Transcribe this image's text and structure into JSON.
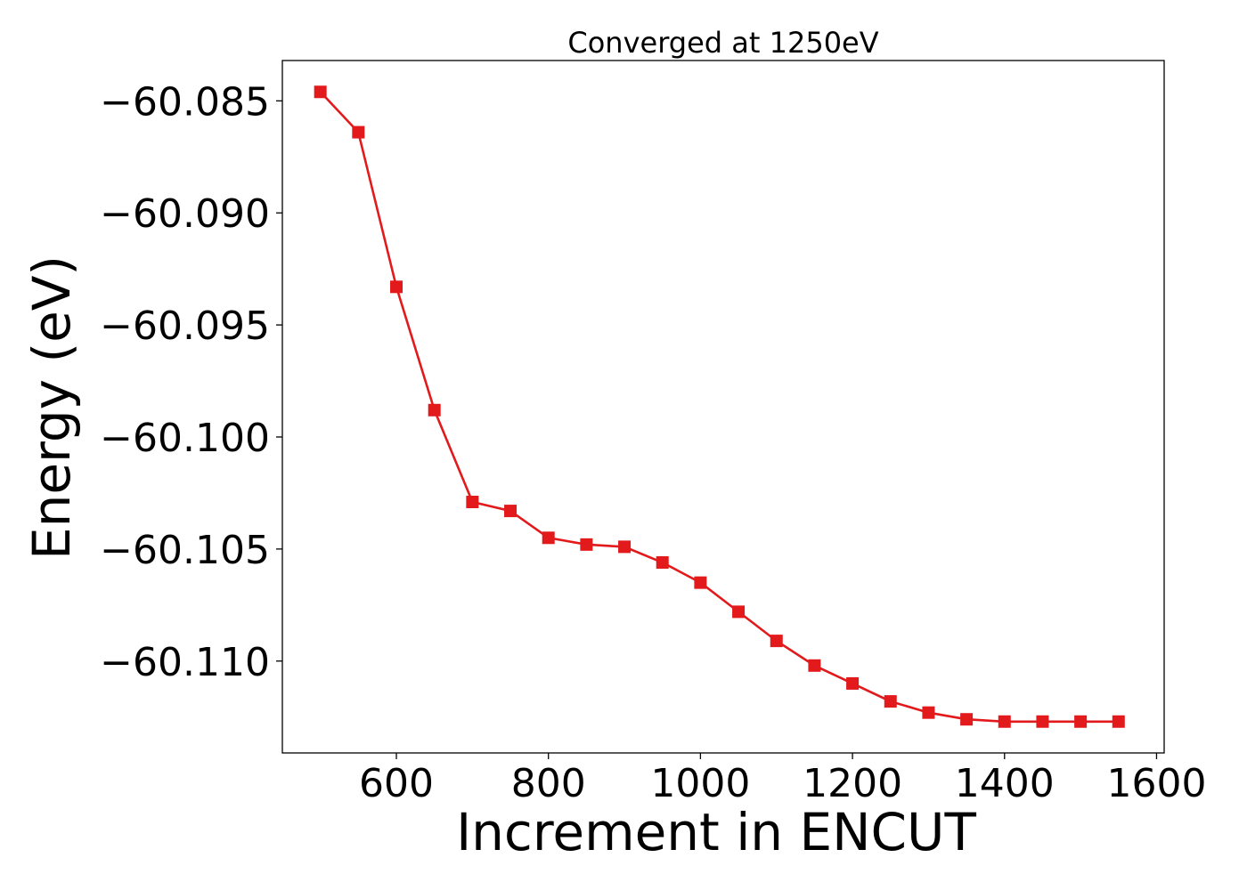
{
  "chart_data": {
    "type": "line",
    "title": "Converged at 1250eV",
    "xlabel": "Increment in ENCUT",
    "ylabel": "Energy (eV)",
    "xlim": [
      450,
      1610
    ],
    "ylim": [
      -60.1141,
      -60.0832
    ],
    "xticks": [
      600,
      800,
      1000,
      1200,
      1400,
      1600
    ],
    "yticks": [
      -60.085,
      -60.09,
      -60.095,
      -60.1,
      -60.105,
      -60.11
    ],
    "ytick_labels": [
      "−60.085",
      "−60.090",
      "−60.095",
      "−60.100",
      "−60.105",
      "−60.110"
    ],
    "grid": false,
    "series": [
      {
        "color": "#e31a1c",
        "marker": "square",
        "x": [
          500,
          550,
          600,
          650,
          700,
          750,
          800,
          850,
          900,
          950,
          1000,
          1050,
          1100,
          1150,
          1200,
          1250,
          1300,
          1350,
          1400,
          1450,
          1500,
          1550
        ],
        "y": [
          -60.0846,
          -60.0864,
          -60.0933,
          -60.0988,
          -60.1029,
          -60.1033,
          -60.1045,
          -60.1048,
          -60.1049,
          -60.1056,
          -60.1065,
          -60.1078,
          -60.1091,
          -60.1102,
          -60.111,
          -60.1118,
          -60.1123,
          -60.1126,
          -60.1127,
          -60.1127,
          -60.1127,
          -60.1127
        ]
      }
    ]
  }
}
